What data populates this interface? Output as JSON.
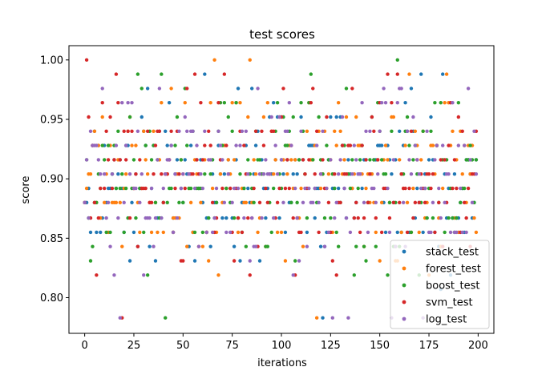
{
  "chart_data": {
    "type": "scatter",
    "title": "test scores",
    "xlabel": "iterations",
    "ylabel": "score",
    "xlim": [
      -8,
      208
    ],
    "ylim": [
      0.77,
      1.012
    ],
    "x_ticks": [
      0,
      25,
      50,
      75,
      100,
      125,
      150,
      175,
      200
    ],
    "y_ticks": [
      0.8,
      0.85,
      0.9,
      0.95,
      1.0
    ],
    "x_tick_labels": [
      "0",
      "25",
      "50",
      "75",
      "100",
      "125",
      "150",
      "175",
      "200"
    ],
    "y_tick_labels": [
      "0.80",
      "0.85",
      "0.90",
      "0.95",
      "1.00"
    ],
    "grid": false,
    "legend_position": "lower-right",
    "series": [
      {
        "name": "stack_test",
        "color": "#1f77b4",
        "seed": 11
      },
      {
        "name": "forest_test",
        "color": "#ff7f0e",
        "seed": 23
      },
      {
        "name": "boost_test",
        "color": "#2ca02c",
        "seed": 37
      },
      {
        "name": "svm_test",
        "color": "#d62728",
        "seed": 41
      },
      {
        "name": "log_test",
        "color": "#9467bd",
        "seed": 59
      }
    ],
    "x_range": [
      0,
      199
    ],
    "score_levels": [
      0.783,
      0.807,
      0.819,
      0.831,
      0.843,
      0.855,
      0.867,
      0.88,
      0.892,
      0.904,
      0.916,
      0.928,
      0.94,
      0.952,
      0.964,
      0.976,
      0.988,
      1.0
    ],
    "level_weights": [
      0.004,
      0.006,
      0.012,
      0.018,
      0.03,
      0.07,
      0.09,
      0.1,
      0.12,
      0.13,
      0.12,
      0.1,
      0.08,
      0.05,
      0.035,
      0.02,
      0.01,
      0.005
    ]
  }
}
